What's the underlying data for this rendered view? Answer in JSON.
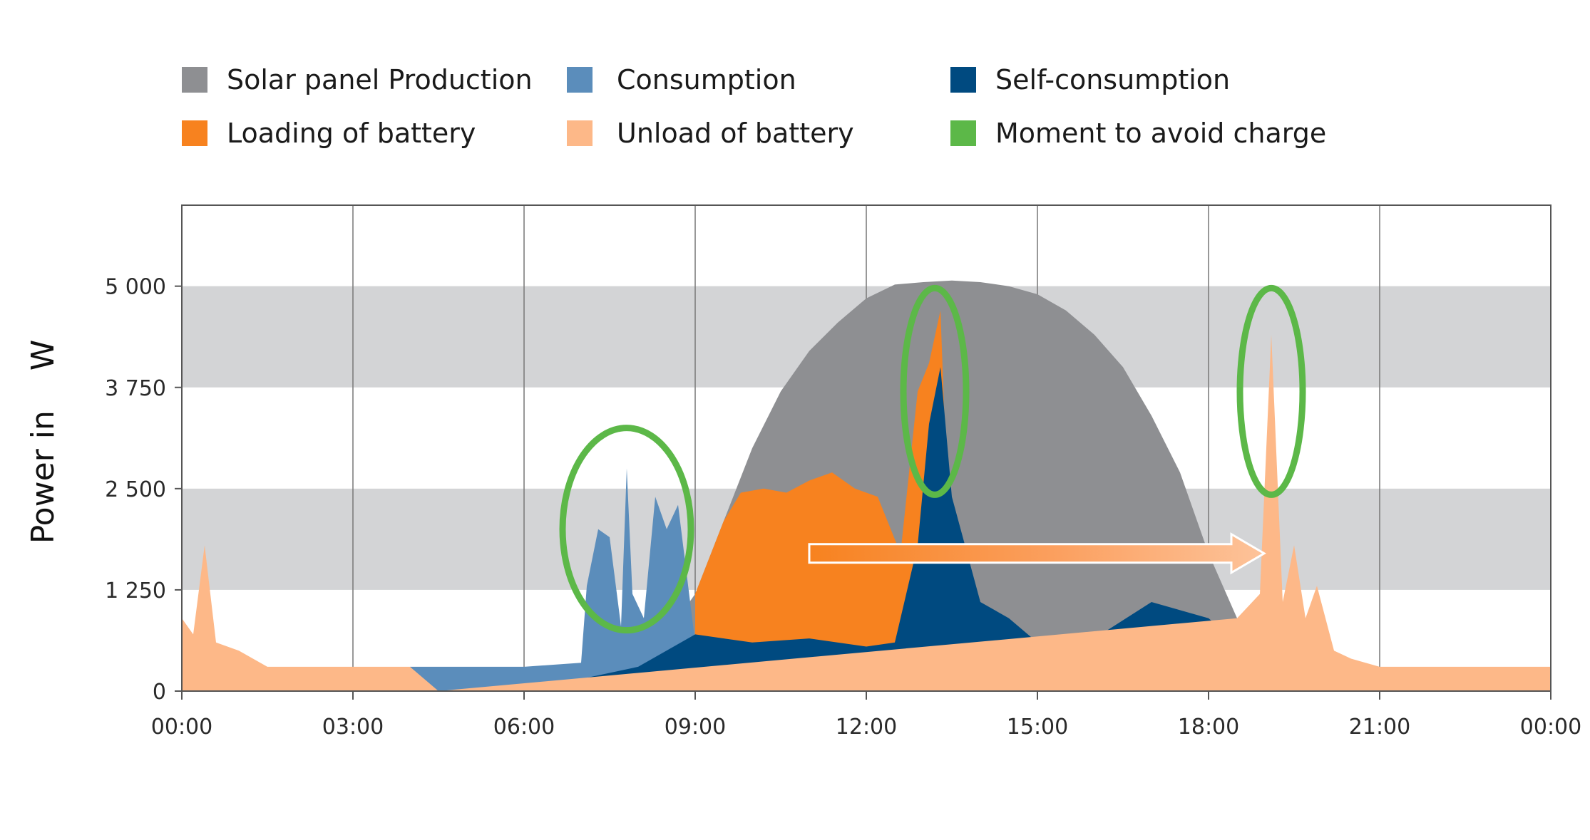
{
  "chart_data": {
    "type": "area",
    "title": "",
    "ylabel": "Power in    W",
    "xlabel": "",
    "ylim": [
      0,
      6000
    ],
    "xlim": [
      0,
      24
    ],
    "grid": true,
    "legend_position": "top",
    "y_ticks": [
      {
        "value": 0,
        "label": "0"
      },
      {
        "value": 1250,
        "label": "1 250"
      },
      {
        "value": 2500,
        "label": "2 500"
      },
      {
        "value": 3750,
        "label": "3 750"
      },
      {
        "value": 5000,
        "label": "5 000"
      }
    ],
    "x_ticks": [
      {
        "value": 0,
        "label": "00:00"
      },
      {
        "value": 3,
        "label": "03:00"
      },
      {
        "value": 6,
        "label": "06:00"
      },
      {
        "value": 9,
        "label": "09:00"
      },
      {
        "value": 12,
        "label": "12:00"
      },
      {
        "value": 15,
        "label": "15:00"
      },
      {
        "value": 18,
        "label": "18:00"
      },
      {
        "value": 21,
        "label": "21:00"
      },
      {
        "value": 24,
        "label": "00:00"
      }
    ],
    "legend": [
      {
        "name": "Solar panel Production",
        "color": "#8e8f92"
      },
      {
        "name": "Consumption",
        "color": "#5b8dbb"
      },
      {
        "name": "Self-consumption",
        "color": "#004a80"
      },
      {
        "name": "Loading of battery",
        "color": "#f7821f"
      },
      {
        "name": "Unload of battery",
        "color": "#fdb888"
      },
      {
        "name": "Moment to avoid charge",
        "color": "#5cb848"
      }
    ],
    "series": [
      {
        "name": "Solar panel Production",
        "color": "#8e8f92",
        "x": [
          0,
          6.5,
          7,
          7.5,
          8,
          8.5,
          9,
          9.5,
          10,
          10.5,
          11,
          11.5,
          12,
          12.5,
          13,
          13.5,
          14,
          14.5,
          15,
          15.5,
          16,
          16.5,
          17,
          17.5,
          18,
          18.5,
          19,
          19.5,
          20,
          20.5,
          24
        ],
        "y": [
          0,
          0,
          80,
          200,
          400,
          700,
          1200,
          2100,
          3000,
          3700,
          4200,
          4550,
          4850,
          5020,
          5050,
          5070,
          5050,
          5000,
          4900,
          4700,
          4400,
          4000,
          3400,
          2700,
          1700,
          900,
          400,
          150,
          40,
          0,
          0
        ]
      },
      {
        "name": "Loading of battery",
        "color": "#f7821f",
        "x": [
          9,
          9.5,
          9.8,
          10.2,
          10.6,
          11,
          11.4,
          11.8,
          12.2,
          12.6,
          12.9,
          13.1,
          13.3,
          13.5
        ],
        "y": [
          1200,
          2100,
          2450,
          2500,
          2450,
          2600,
          2700,
          2500,
          2400,
          1700,
          3700,
          4050,
          4700,
          900
        ]
      },
      {
        "name": "Consumption",
        "color": "#5b8dbb",
        "x": [
          4,
          6,
          7,
          7.1,
          7.3,
          7.5,
          7.7,
          7.8,
          7.9,
          8.1,
          8.3,
          8.5,
          8.7,
          9
        ],
        "y": [
          300,
          300,
          350,
          1300,
          2000,
          1900,
          800,
          2750,
          1200,
          900,
          2400,
          2000,
          2300,
          600
        ]
      },
      {
        "name": "Self-consumption",
        "color": "#004a80",
        "x": [
          7,
          8,
          9,
          10,
          11,
          12,
          12.5,
          12.9,
          13.1,
          13.3,
          13.5,
          14,
          14.5,
          15,
          16,
          17,
          18,
          18.5,
          19,
          19.5,
          20,
          20.5
        ],
        "y": [
          150,
          300,
          700,
          600,
          650,
          550,
          600,
          1800,
          3300,
          4000,
          2400,
          1100,
          900,
          600,
          650,
          1100,
          900,
          600,
          400,
          200,
          100,
          0
        ]
      },
      {
        "name": "Unload of battery",
        "color": "#fdb888",
        "x": [
          0,
          0.2,
          0.4,
          0.6,
          1,
          1.5,
          2,
          3,
          4,
          4.5,
          18.5,
          18.9,
          19.1,
          19.3,
          19.5,
          19.7,
          19.9,
          20.2,
          20.5,
          21,
          22,
          23,
          24
        ],
        "y": [
          900,
          700,
          1800,
          600,
          500,
          300,
          300,
          300,
          300,
          0,
          900,
          1200,
          4400,
          1100,
          1800,
          900,
          1300,
          500,
          400,
          300,
          300,
          300,
          300
        ]
      }
    ],
    "annotations": [
      {
        "type": "ellipse",
        "color": "#5cb848",
        "x": 7.8,
        "y": 2000,
        "meaning": "Moment to avoid charge"
      },
      {
        "type": "ellipse",
        "color": "#5cb848",
        "x": 13.2,
        "y": 3700,
        "meaning": "Moment to avoid charge"
      },
      {
        "type": "ellipse",
        "color": "#5cb848",
        "x": 19.1,
        "y": 3700,
        "meaning": "Moment to avoid charge"
      },
      {
        "type": "arrow",
        "from_x": 11,
        "to_x": 19.1,
        "y": 1700
      }
    ]
  }
}
